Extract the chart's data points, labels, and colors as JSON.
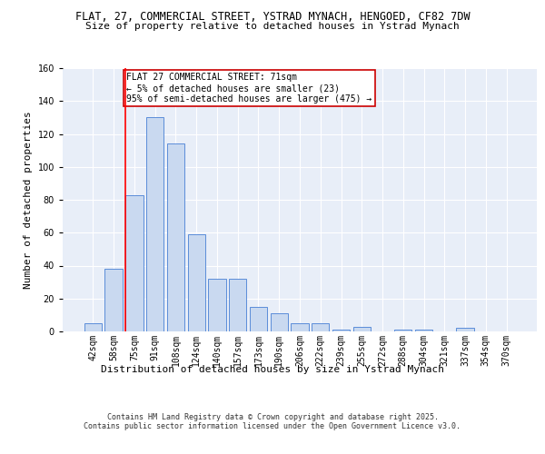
{
  "title1": "FLAT, 27, COMMERCIAL STREET, YSTRAD MYNACH, HENGOED, CF82 7DW",
  "title2": "Size of property relative to detached houses in Ystrad Mynach",
  "xlabel": "Distribution of detached houses by size in Ystrad Mynach",
  "ylabel": "Number of detached properties",
  "categories": [
    "42sqm",
    "58sqm",
    "75sqm",
    "91sqm",
    "108sqm",
    "124sqm",
    "140sqm",
    "157sqm",
    "173sqm",
    "190sqm",
    "206sqm",
    "222sqm",
    "239sqm",
    "255sqm",
    "272sqm",
    "288sqm",
    "304sqm",
    "321sqm",
    "337sqm",
    "354sqm",
    "370sqm"
  ],
  "values": [
    5,
    38,
    83,
    130,
    114,
    59,
    32,
    32,
    15,
    11,
    5,
    5,
    1,
    3,
    0,
    1,
    1,
    0,
    2,
    0,
    0
  ],
  "bar_color": "#c9d9f0",
  "bar_edge_color": "#5b8dd9",
  "red_line_index": 2,
  "annotation_text": "FLAT 27 COMMERCIAL STREET: 71sqm\n← 5% of detached houses are smaller (23)\n95% of semi-detached houses are larger (475) →",
  "annotation_box_color": "#ffffff",
  "annotation_box_edge": "#cc0000",
  "ylim": [
    0,
    160
  ],
  "yticks": [
    0,
    20,
    40,
    60,
    80,
    100,
    120,
    140,
    160
  ],
  "background_color": "#e8eef8",
  "footer_text": "Contains HM Land Registry data © Crown copyright and database right 2025.\nContains public sector information licensed under the Open Government Licence v3.0.",
  "title1_fontsize": 8.5,
  "title2_fontsize": 8,
  "xlabel_fontsize": 8,
  "ylabel_fontsize": 8,
  "tick_fontsize": 7,
  "annotation_fontsize": 7,
  "footer_fontsize": 6
}
